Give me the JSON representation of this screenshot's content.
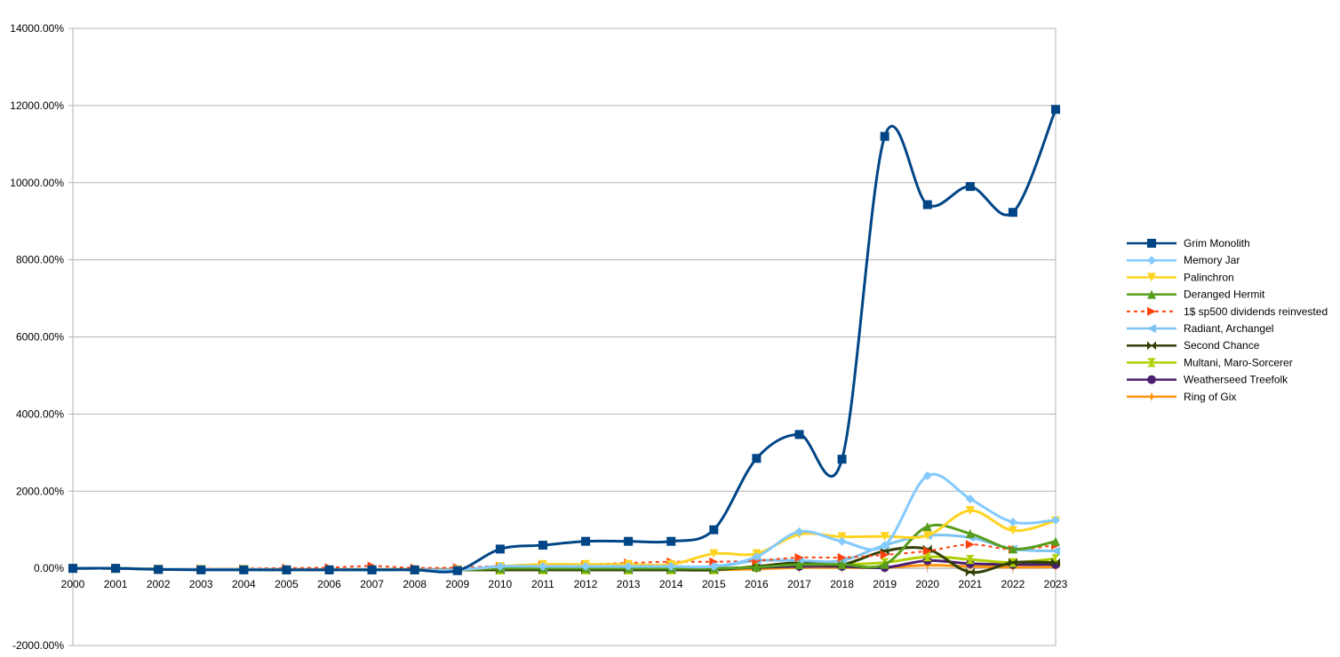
{
  "chart_data": {
    "type": "line",
    "title": "",
    "xlabel": "",
    "ylabel": "",
    "x": [
      2000,
      2001,
      2002,
      2003,
      2004,
      2005,
      2006,
      2007,
      2008,
      2009,
      2010,
      2011,
      2012,
      2013,
      2014,
      2015,
      2016,
      2017,
      2018,
      2019,
      2020,
      2021,
      2022,
      2023
    ],
    "x_tick_labels": [
      "2000",
      "2001",
      "2002",
      "2003",
      "2004",
      "2005",
      "2006",
      "2007",
      "2008",
      "2009",
      "2010",
      "2011",
      "2012",
      "2013",
      "2014",
      "2015",
      "2016",
      "2017",
      "2018",
      "2019",
      "2020",
      "2021",
      "2022",
      "2023"
    ],
    "ylim": [
      -2000,
      14000
    ],
    "y_ticks": [
      -2000,
      0,
      2000,
      4000,
      6000,
      8000,
      10000,
      12000,
      14000
    ],
    "y_tick_labels": [
      "-2000.00%",
      "0.00%",
      "2000.00%",
      "4000.00%",
      "6000.00%",
      "8000.00%",
      "10000.00%",
      "12000.00%",
      "14000.00%"
    ],
    "grid": true,
    "legend_position": "right",
    "series": [
      {
        "name": "Grim Monolith",
        "color": "#004586",
        "marker": "square",
        "dashed": false,
        "values": [
          0,
          0,
          -30,
          -40,
          -40,
          -40,
          -40,
          -40,
          -40,
          -60,
          500,
          600,
          700,
          700,
          700,
          1000,
          2850,
          3470,
          2830,
          11200,
          9430,
          9900,
          9230,
          11900
        ]
      },
      {
        "name": "Memory Jar",
        "color": "#83caff",
        "marker": "diamond",
        "dashed": false,
        "values": [
          0,
          0,
          -20,
          -30,
          -30,
          -40,
          -40,
          -40,
          -40,
          -40,
          50,
          50,
          50,
          50,
          50,
          50,
          300,
          950,
          700,
          600,
          2400,
          1800,
          1200,
          1250
        ]
      },
      {
        "name": "Palinchron",
        "color": "#ffd320",
        "marker": "triangle-down",
        "dashed": false,
        "values": [
          0,
          0,
          -20,
          -30,
          -30,
          -40,
          -40,
          -40,
          -40,
          -40,
          50,
          100,
          100,
          100,
          100,
          380,
          380,
          880,
          820,
          830,
          850,
          1500,
          980,
          1230
        ]
      },
      {
        "name": "Deranged Hermit",
        "color": "#579d1c",
        "marker": "triangle-up",
        "dashed": false,
        "values": [
          0,
          0,
          -20,
          -30,
          -30,
          -40,
          -40,
          -40,
          -40,
          -40,
          0,
          0,
          0,
          0,
          0,
          0,
          30,
          100,
          100,
          100,
          1080,
          900,
          500,
          700
        ]
      },
      {
        "name": "1$ sp500 dividends reinvested",
        "color": "#ff420e",
        "marker": "triangle-right",
        "dashed": true,
        "values": [
          0,
          -10,
          -25,
          -10,
          -5,
          5,
          20,
          60,
          10,
          20,
          60,
          80,
          100,
          140,
          170,
          170,
          200,
          280,
          280,
          350,
          450,
          620,
          490,
          600
        ]
      },
      {
        "name": "Radiant, Archangel",
        "color": "#7cc4f2",
        "marker": "triangle-left",
        "dashed": false,
        "values": [
          0,
          0,
          -20,
          -30,
          -30,
          -40,
          -40,
          -40,
          -40,
          -40,
          30,
          30,
          30,
          30,
          30,
          30,
          200,
          200,
          200,
          600,
          850,
          800,
          500,
          450
        ]
      },
      {
        "name": "Second Chance",
        "color": "#314004",
        "marker": "bowtie",
        "dashed": false,
        "values": [
          0,
          0,
          -20,
          -30,
          -30,
          -40,
          -40,
          -40,
          -40,
          -40,
          -40,
          -40,
          -40,
          -40,
          -40,
          -40,
          50,
          150,
          100,
          450,
          500,
          -100,
          150,
          150
        ]
      },
      {
        "name": "Multani, Maro-Sorcerer",
        "color": "#aecf00",
        "marker": "hourglass",
        "dashed": false,
        "values": [
          0,
          0,
          -20,
          -30,
          -30,
          -40,
          -40,
          -40,
          -40,
          -40,
          -40,
          -40,
          -40,
          -40,
          -40,
          -40,
          50,
          100,
          100,
          150,
          300,
          230,
          150,
          250
        ]
      },
      {
        "name": "Weatherseed Treefolk",
        "color": "#4b1f6f",
        "marker": "circle",
        "dashed": false,
        "values": [
          0,
          0,
          -20,
          -30,
          -30,
          -40,
          -40,
          -40,
          -40,
          -40,
          -40,
          -40,
          -40,
          -40,
          -40,
          -10,
          20,
          50,
          50,
          20,
          200,
          120,
          100,
          100
        ]
      },
      {
        "name": "Ring of Gix",
        "color": "#ff950e",
        "marker": "star",
        "dashed": false,
        "values": [
          0,
          0,
          -20,
          -30,
          -30,
          -40,
          -40,
          -40,
          -40,
          -40,
          -40,
          -40,
          -40,
          -40,
          -40,
          -40,
          -20,
          20,
          20,
          20,
          80,
          50,
          30,
          40
        ]
      }
    ]
  }
}
